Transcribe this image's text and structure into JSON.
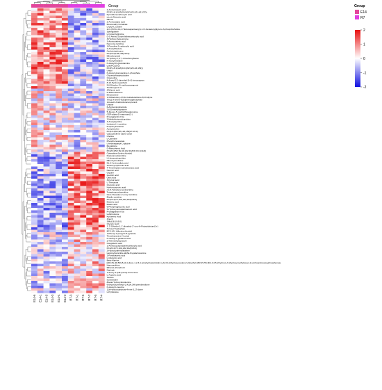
{
  "chart_data": {
    "type": "heatmap",
    "group_header": "Group",
    "legend": {
      "title": "Group",
      "groups": [
        {
          "name": "E14",
          "color": "#e2469b"
        },
        {
          "name": "R7",
          "color": "#e040e0"
        }
      ],
      "scale_ticks": [
        2,
        1,
        0,
        -1,
        -2
      ],
      "color_low": "#1010e0",
      "color_mid": "#ffffff",
      "color_high": "#e81010"
    },
    "columns": [
      "E14-6",
      "E14-1",
      "E14-5",
      "E14-3",
      "E14-4",
      "E14-2",
      "R7-3",
      "R7-1",
      "R7-6",
      "R7-2",
      "R7-5",
      "R7-4"
    ],
    "column_groups": [
      "E14",
      "E14",
      "E14",
      "E14",
      "E14",
      "E14",
      "R7",
      "R7",
      "R7",
      "R7",
      "R7",
      "R7"
    ],
    "rows": [
      "2-Aminobutyric acid",
      "PC(P-18:1(11Z)/20:5(5Z,8Z,11Z,14Z,17Z))",
      "Pyrrolidonecarboxylic acid",
      "cis,cis-Muconic acid",
      "Ribose",
      "2-Aminoadipic acid",
      "Monomethyl fumarate",
      "L-lysyl-L-cystine",
      "2-O-(5,8,11,14,17-Eicosapentaenyl)-1-O-hexadecylglycero-3-phosphocholine",
      "Sphinganine",
      "L-Cysteinylglycine",
      "D-1-Amino-2-pyrrolidinecarboxylic acid",
      "3-Hydroxy-beta-ionone",
      "3-Aminovaleric acid",
      "Nervonyl carnitine",
      "1-Pyrroline-2-carboxylic acid",
      "2-Acetylthiazole",
      "Cyclotetradecane",
      "PC(22:2(13Z,16Z)/15:0)",
      "Dihydroxyacid",
      "5-Hydroxy-7,4',7-trimethoxyflavan",
      "N-Acetylhistidine",
      "N-Acetyl-D-glucosamine",
      "LysoPC(15:0)",
      "PC(P-18:1(11Z)/18:4(6Z,9Z,12Z,15Z))",
      "Uracil",
      "N-Acetyl-glucosamine 1-phosphate",
      "Glycerophosphocholine",
      "Graveoline",
      "8-Acetyl-2,2-dimethyl-2H-1-benzopyran",
      "8-10-Hydroxywarfarin",
      "5,6-Dihydro-11-methoxyyangonin",
      "Smilanogenin A",
      "(R)-lipoic acid",
      "D-Ribonolactone",
      "Melonamine",
      "1,3-Diacetoxy-4,6,12-tetradecatriene-8,10-diyne",
      "Tris(2,4-di-tert-butylphenyl)phosphate",
      "1-beta-D-Arabinofuranosyluracil",
      "Uridine",
      "6-Aminonicotinamide",
      "2,6-Dimethylpyrazine",
      "5'-Deoxy-5'-methylthioadenosine",
      "GDP-alpha-D-mannose(2-)",
      "Prostaglandin F1a",
      "2-Methylbutyroylcarnitine",
      "3-Acetylpyridine",
      "Isobutyryl-L-carnitine",
      "Propionylcarnitine",
      "Acetylcholine",
      "PC(16:4(6Z,9Z,12Z,15Z)/P-16:0)",
      "Caryophyllene alpha-oxide",
      "Choline",
      "L-Carnitine",
      "Phosphonoacetate",
      "L-beta-aspartyl-L-glycine",
      "Menadione",
      "D-Pantothenic Acid",
      "PC(20:4(5Z,7E,9Z,13Z,16Z)/P-18:1(11Z))",
      "Cytarabine (hydrochloride)",
      "Dodecanoylcarnitine",
      "L-Hexanoylcarnitine",
      "Dibenzylmethane",
      "DL-2-Aminoadipic acid",
      "4-Deoxyerythronic acid",
      "4-Trimethylammoniobutanoic acid",
      "Neomic acid",
      "Glycine",
      "Isocitric acid",
      "Citric acid",
      "3-Furoic acid",
      "L-Threonine",
      "Gluconic acid",
      "Hydroxypyruvic acid",
      "cis-5-Tetradecenoylcarnitine",
      "Tetradecanoylcarnitine",
      "trans-Hexadec-2-enoyl carnitine",
      "Elaidic carnitine",
      "PC(22:4(7Z,10Z,13Z,16Z)/18:0)",
      "Malonic acid",
      "Maleic acid",
      "6-Phosphogluconic acid",
      "5-Hydroxyeicosatetraenoic acid",
      "Prostaglandin F2a",
      "Lubiprostone",
      "Kynurenic Acid",
      "Jinecil",
      "SM(d18:1/16:0)",
      "Glyceric acid",
      "1',2'-Dihydro-1,1'-dimethyl-2'-oxo-4,4'-bipyridinium(1+)",
      "Tyrosyl-Tryptophan",
      "BC-13A1 (dihydrochloride)",
      "1-Phenyl-3-propyl-1H-pyrazole",
      "Trimethylamine N-oxide",
      "N-methyl-L-glutamic Acid",
      "2,4-Dimethylpyrazole",
      "Oxoglutaric acid",
      "1-Aminocyclopropanecarboxylic acid",
      "PC(20:4(7Z,10Z,13Z,16Z)/18:0)",
      "2-Hydroxyphenylalanine",
      "Lactosylceramide-alpha-D-galactosamine",
      "2-Pyridylacetic acid",
      "L-Glutamic acid",
      "Beta-Alanine",
      "[(2R,3S,4R,5R)-5-(2,4-dioxo-1,2,3,4-tetrahydropyrimidin-1-yl)-3,4-dihydroxyoxolan-2-yl]methyl [(3R,4S,5S,6R)-3,4,5-trihydroxy-6-(hydroxymethyl)oxan-2-yl phosphono]oxyphosphonate",
      "Hypoxanthine",
      "Ethanol phosphoric",
      "Naringin",
      "1-deoxy-1-(N6-lysino)-D-fructose",
      "L-Aspartic acid",
      "Taurine",
      "Isovitexdine",
      "8beta-Hydroxyfestolenine",
      "6-(Hydroxymethyl)-2,4(1H,3H)-pteridinedione",
      "N-Acetyl-L-leucine",
      "11b-Hydroxyandrost-4-ene-3,17-dione",
      "L-Pyridosine"
    ]
  }
}
